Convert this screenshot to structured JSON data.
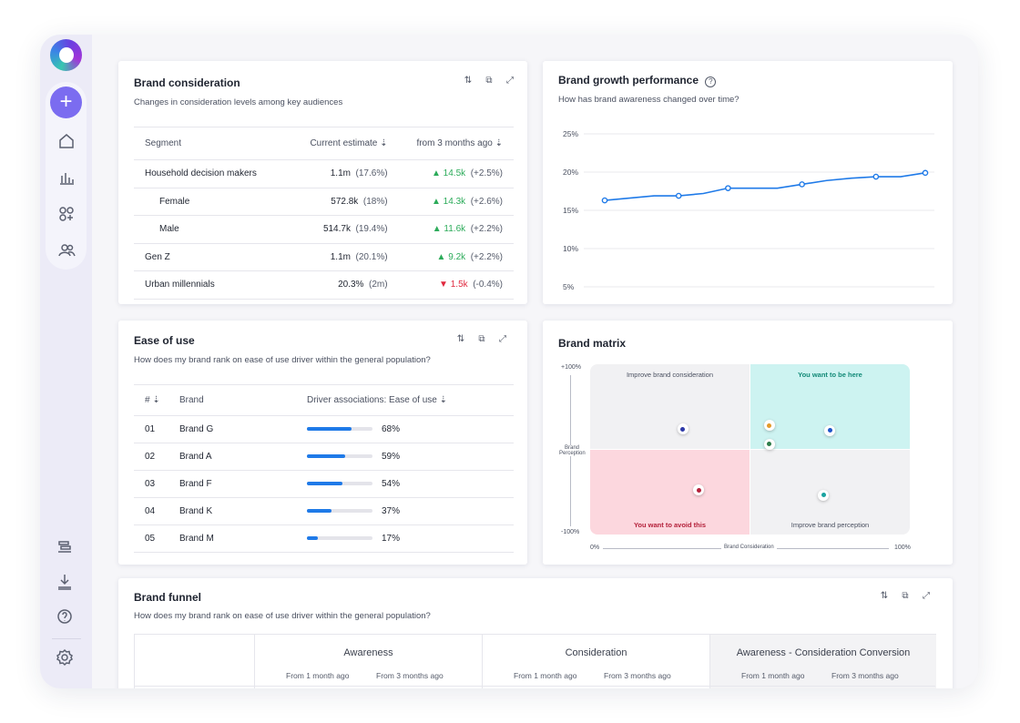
{
  "colors": {
    "accent": "#7b6cf0",
    "line": "#1f7ae8",
    "up": "#2cab5a",
    "down": "#e0283e",
    "quad_want": "#cdf3f1",
    "quad_avoid": "#fcd7de",
    "quad_neutral": "#f1f1f3"
  },
  "sidebar": {
    "add_label": "+",
    "icons": [
      "home-icon",
      "bar-chart-icon",
      "apps-icon",
      "users-icon",
      "stack-icon",
      "download-icon",
      "help-icon",
      "settings-icon"
    ]
  },
  "consideration": {
    "title": "Brand consideration",
    "subtitle": "Changes in consideration levels among key audiences",
    "headers": {
      "segment": "Segment",
      "current": "Current estimate",
      "change": "from 3 months ago"
    },
    "rows": [
      {
        "segment": "Household decision makers",
        "value": "1.1m",
        "pct": "(17.6%)",
        "delta": "14.5k",
        "delta_pct": "(+2.5%)",
        "dir": "up"
      },
      {
        "segment": "Female",
        "value": "572.8k",
        "pct": "(18%)",
        "delta": "14.3k",
        "delta_pct": "(+2.6%)",
        "dir": "up"
      },
      {
        "segment": "Male",
        "value": "514.7k",
        "pct": "(19.4%)",
        "delta": "11.6k",
        "delta_pct": "(+2.2%)",
        "dir": "up"
      },
      {
        "segment": "Gen Z",
        "value": "1.1m",
        "pct": "(20.1%)",
        "delta": "9.2k",
        "delta_pct": "(+2.2%)",
        "dir": "up"
      },
      {
        "segment": "Urban millennials",
        "value": "20.3%",
        "pct": "(2m)",
        "delta": "1.5k",
        "delta_pct": "(-0.4%)",
        "dir": "down"
      }
    ]
  },
  "growth": {
    "title": "Brand growth performance",
    "subtitle": "How has brand awareness changed over time?"
  },
  "chart_data": {
    "type": "line",
    "yticks": [
      "25%",
      "20%",
      "15%",
      "10%",
      "5%"
    ],
    "ylim": [
      5,
      25
    ],
    "values": [
      16.3,
      16.6,
      16.9,
      16.9,
      17.2,
      17.9,
      17.9,
      17.9,
      18.4,
      18.9,
      19.2,
      19.4,
      19.4,
      19.9
    ],
    "markers": [
      0,
      3,
      5,
      8,
      11,
      13
    ]
  },
  "ease": {
    "title": "Ease of use",
    "subtitle": "How does my brand rank on ease of use driver within the general population?",
    "headers": {
      "rank": "#",
      "brand": "Brand",
      "driver": "Driver associations: Ease of use"
    },
    "rows": [
      {
        "rank": "01",
        "brand": "Brand G",
        "pct_label": "68%",
        "value": 68
      },
      {
        "rank": "02",
        "brand": "Brand A",
        "pct_label": "59%",
        "value": 59
      },
      {
        "rank": "03",
        "brand": "Brand F",
        "pct_label": "54%",
        "value": 54
      },
      {
        "rank": "04",
        "brand": "Brand K",
        "pct_label": "37%",
        "value": 37
      },
      {
        "rank": "05",
        "brand": "Brand M",
        "pct_label": "17%",
        "value": 17
      }
    ]
  },
  "matrix": {
    "title": "Brand matrix",
    "q_tl": "Improve brand consideration",
    "q_tr": "You want to be here",
    "q_bl": "You want to avoid this",
    "q_br": "Improve brand perception",
    "y_top": "+100%",
    "y_bottom": "-100%",
    "y_label": "Brand Perception",
    "x_left": "0%",
    "x_right": "100%",
    "x_label": "Brand Consideration",
    "points": [
      {
        "x": 0.29,
        "y": 0.62,
        "color": "#2e3aa8"
      },
      {
        "x": 0.56,
        "y": 0.53,
        "color": "#2e7d4a"
      },
      {
        "x": 0.34,
        "y": 0.26,
        "color": "#b4203a"
      },
      {
        "x": 0.56,
        "y": 0.64,
        "color": "#e39a2a"
      },
      {
        "x": 0.75,
        "y": 0.61,
        "color": "#1f55c8"
      },
      {
        "x": 0.73,
        "y": 0.23,
        "color": "#1aa3a0"
      }
    ]
  },
  "funnel": {
    "title": "Brand funnel",
    "subtitle": "How does my brand rank on ease of use driver within the general population?",
    "cols": [
      {
        "name": "Awareness",
        "s1": "From 1 month ago",
        "s2": "From 3 months ago"
      },
      {
        "name": "Consideration",
        "s1": "From 1 month ago",
        "s2": "From 3 months ago"
      },
      {
        "name": "Awareness - Consideration Conversion",
        "s1": "From 1 month ago",
        "s2": "From 3 months ago"
      }
    ]
  }
}
